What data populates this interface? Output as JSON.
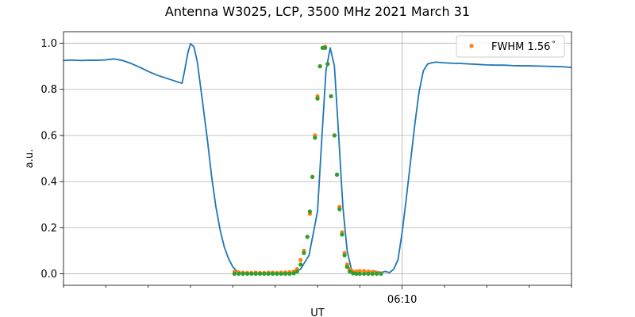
{
  "chart_data": {
    "type": "line",
    "title": "Antenna W3025, LCP, 3500 MHz 2021 March 31",
    "xlabel": "UT",
    "ylabel": "a.u.",
    "xlim": [
      0,
      60
    ],
    "ylim": [
      -0.05,
      1.05
    ],
    "y_ticks": [
      0.0,
      0.2,
      0.4,
      0.6,
      0.8,
      1.0
    ],
    "y_tick_labels": [
      "0.0",
      "0.2",
      "0.4",
      "0.6",
      "0.8",
      "1.0"
    ],
    "x_major_ticks": [
      {
        "value": 40,
        "label": "06:10"
      }
    ],
    "x_minor_ticks": [
      0,
      5,
      10,
      15,
      20,
      25,
      30,
      35,
      45,
      50,
      55,
      60
    ],
    "grid": true,
    "legend": {
      "placement": "top-right",
      "entries": [
        {
          "label": "FWHM 1.56$^\\circ$",
          "display": "FWHM 1.56",
          "degree_symbol": "°",
          "color": "#ff7f0e"
        }
      ]
    },
    "colors": {
      "line": "#1f77b4",
      "orange_points": "#ff7f0e",
      "green_points": "#2ca02c",
      "grid": "#b0b0b0"
    },
    "series": [
      {
        "type": "line",
        "x": [
          0,
          1,
          2,
          3,
          4,
          5,
          6,
          7,
          8,
          9,
          10,
          11,
          12,
          13,
          14,
          14.3,
          14.7,
          15.0,
          15.4,
          15.8,
          16.3,
          17,
          17.5,
          18,
          18.5,
          19,
          19.5,
          20,
          20.5,
          21,
          22,
          23,
          24,
          25,
          26,
          27,
          28,
          29,
          30,
          30.5,
          31,
          31.5,
          32,
          32.5,
          33,
          33.5,
          34,
          34.5,
          35,
          35.5,
          36,
          36.5,
          37,
          37.5,
          38,
          38.5,
          39,
          39.5,
          40,
          40.5,
          41,
          41.5,
          42,
          42.5,
          43,
          43.5,
          44,
          45,
          46,
          47,
          48,
          49,
          50,
          51,
          52,
          53,
          54,
          55,
          56,
          57,
          58,
          59,
          60
        ],
        "y": [
          0.925,
          0.927,
          0.925,
          0.926,
          0.926,
          0.928,
          0.932,
          0.925,
          0.912,
          0.896,
          0.878,
          0.862,
          0.85,
          0.838,
          0.826,
          0.88,
          0.96,
          0.998,
          0.985,
          0.92,
          0.78,
          0.58,
          0.42,
          0.29,
          0.19,
          0.115,
          0.065,
          0.03,
          0.01,
          0.003,
          0.0,
          0.0,
          0.0,
          0.0,
          0.0,
          0.004,
          0.02,
          0.08,
          0.27,
          0.58,
          0.88,
          0.98,
          0.9,
          0.6,
          0.29,
          0.1,
          0.02,
          0.005,
          0.0,
          0.0,
          0.005,
          0.012,
          0.01,
          0.005,
          0.01,
          0.005,
          0.02,
          0.06,
          0.18,
          0.33,
          0.49,
          0.65,
          0.79,
          0.88,
          0.91,
          0.915,
          0.918,
          0.915,
          0.913,
          0.912,
          0.91,
          0.908,
          0.906,
          0.905,
          0.905,
          0.903,
          0.902,
          0.902,
          0.901,
          0.9,
          0.899,
          0.898,
          0.895
        ]
      },
      {
        "type": "scatter",
        "x": [
          20.2,
          20.7,
          21.2,
          21.7,
          22.2,
          22.7,
          23.2,
          23.7,
          24.2,
          24.7,
          25.2,
          25.7,
          26.2,
          26.7,
          27.2,
          27.6,
          28.0,
          28.4,
          28.8,
          29.1,
          29.4,
          29.7,
          30.0,
          30.3,
          30.6,
          30.9,
          31.2,
          31.6,
          32.0,
          32.3,
          32.6,
          32.9,
          33.2,
          33.5,
          33.8,
          34.2,
          34.6,
          35.0,
          35.5,
          36.0,
          36.5,
          37.0,
          37.5
        ],
        "y": [
          0.008,
          0.006,
          0.005,
          0.004,
          0.004,
          0.005,
          0.004,
          0.004,
          0.005,
          0.005,
          0.004,
          0.005,
          0.006,
          0.007,
          0.01,
          0.02,
          0.06,
          0.1,
          0.16,
          0.26,
          0.42,
          0.6,
          0.77,
          0.9,
          0.98,
          0.985,
          0.91,
          0.77,
          0.6,
          0.43,
          0.29,
          0.18,
          0.09,
          0.04,
          0.02,
          0.01,
          0.01,
          0.012,
          0.012,
          0.01,
          0.008,
          0.005,
          0.002
        ]
      },
      {
        "type": "scatter",
        "x": [
          20.2,
          20.7,
          21.2,
          21.7,
          22.2,
          22.7,
          23.2,
          23.7,
          24.2,
          24.7,
          25.2,
          25.7,
          26.2,
          26.7,
          27.2,
          27.6,
          28.0,
          28.4,
          28.8,
          29.1,
          29.4,
          29.7,
          30.0,
          30.3,
          30.6,
          30.9,
          31.2,
          31.6,
          32.0,
          32.3,
          32.6,
          32.9,
          33.2,
          33.5,
          33.8,
          34.2,
          34.6,
          35.0,
          35.5,
          36.0,
          36.5,
          37.0,
          37.5
        ],
        "y": [
          0.0,
          0.0,
          0.0,
          0.0,
          0.0,
          0.0,
          0.0,
          0.0,
          0.0,
          0.0,
          0.0,
          0.0,
          0.0,
          0.0,
          0.002,
          0.01,
          0.04,
          0.09,
          0.16,
          0.27,
          0.42,
          0.59,
          0.76,
          0.9,
          0.98,
          0.98,
          0.91,
          0.77,
          0.6,
          0.43,
          0.28,
          0.17,
          0.08,
          0.03,
          0.01,
          0.002,
          0.0,
          0.0,
          0.0,
          0.0,
          0.0,
          0.0,
          0.0
        ]
      }
    ]
  }
}
